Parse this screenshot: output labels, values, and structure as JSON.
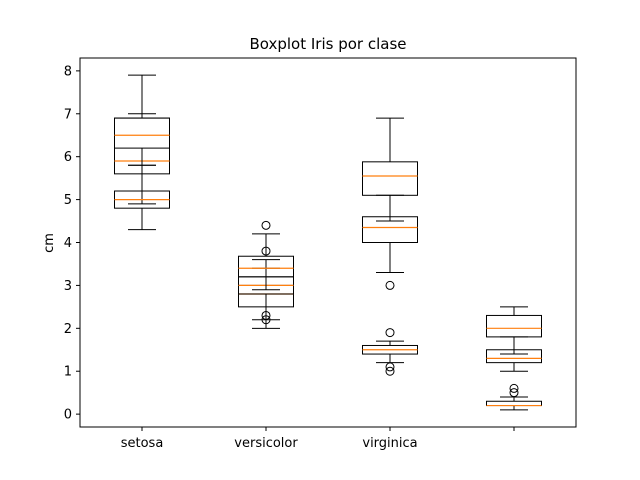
{
  "chart_data": {
    "type": "boxplot",
    "title": "Boxplot Iris por clase",
    "xlabel": "",
    "ylabel": "cm",
    "categories": [
      "setosa",
      "versicolor",
      "virginica",
      ""
    ],
    "ylim": [
      -0.3,
      8.3
    ],
    "yticks": [
      0,
      1,
      2,
      3,
      4,
      5,
      6,
      7,
      8
    ],
    "grid": false,
    "colors": {
      "box": "#000000",
      "median": "#ff7f0e"
    },
    "boxes": [
      {
        "category": "setosa",
        "q1": 5.6,
        "median": 5.9,
        "q3": 6.9,
        "whisker_low": 4.9,
        "whisker_high": 7.0,
        "fliers": []
      },
      {
        "category": "setosa",
        "q1": 6.2,
        "median": 6.5,
        "q3": 6.9,
        "whisker_low": 5.8,
        "whisker_high": 7.9,
        "fliers": []
      },
      {
        "category": "setosa",
        "q1": 4.8,
        "median": 5.0,
        "q3": 5.2,
        "whisker_low": 4.3,
        "whisker_high": 5.8,
        "fliers": []
      },
      {
        "category": "versicolor",
        "q1": 2.5,
        "median": 2.8,
        "q3": 3.0,
        "whisker_low": 2.0,
        "whisker_high": 3.4,
        "fliers": [
          2.2,
          2.3
        ]
      },
      {
        "category": "versicolor",
        "q1": 2.8,
        "median": 3.0,
        "q3": 3.2,
        "whisker_low": 2.2,
        "whisker_high": 3.6,
        "fliers": [
          3.8
        ]
      },
      {
        "category": "versicolor",
        "q1": 3.2,
        "median": 3.4,
        "q3": 3.68,
        "whisker_low": 2.9,
        "whisker_high": 4.2,
        "fliers": [
          4.4
        ]
      },
      {
        "category": "virginica",
        "q1": 4.0,
        "median": 4.35,
        "q3": 4.6,
        "whisker_low": 3.3,
        "whisker_high": 5.1,
        "fliers": [
          3.0
        ]
      },
      {
        "category": "virginica",
        "q1": 5.1,
        "median": 5.55,
        "q3": 5.88,
        "whisker_low": 4.5,
        "whisker_high": 6.9,
        "fliers": []
      },
      {
        "category": "virginica",
        "q1": 1.4,
        "median": 1.5,
        "q3": 1.6,
        "whisker_low": 1.2,
        "whisker_high": 1.7,
        "fliers": [
          1.0,
          1.1,
          1.9
        ]
      },
      {
        "category": "",
        "q1": 1.2,
        "median": 1.3,
        "q3": 1.5,
        "whisker_low": 1.0,
        "whisker_high": 1.8,
        "fliers": []
      },
      {
        "category": "",
        "q1": 1.8,
        "median": 2.0,
        "q3": 2.3,
        "whisker_low": 1.4,
        "whisker_high": 2.5,
        "fliers": []
      },
      {
        "category": "",
        "q1": 0.2,
        "median": 0.2,
        "q3": 0.3,
        "whisker_low": 0.1,
        "whisker_high": 0.4,
        "fliers": [
          0.5,
          0.6
        ]
      }
    ]
  }
}
